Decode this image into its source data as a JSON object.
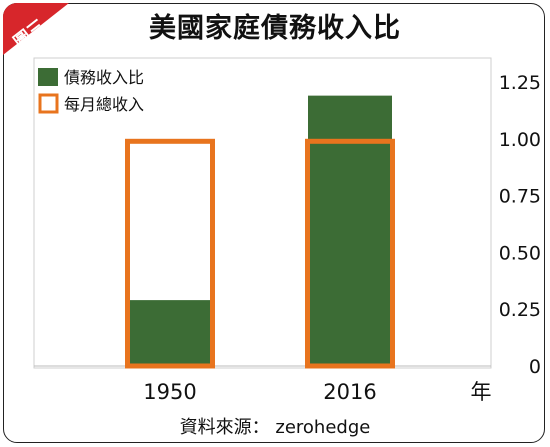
{
  "badge": "圖三",
  "source": "資料來源： zerohedge",
  "chart_data": {
    "type": "bar",
    "title": "美國家庭債務收入比",
    "categories": [
      "1950",
      "2016"
    ],
    "xunit": "年",
    "series": [
      {
        "name": "債務收入比",
        "values": [
          0.29,
          1.19
        ],
        "color": "#3c6c35",
        "style": "filled"
      },
      {
        "name": "每月總收入",
        "values": [
          1.0,
          1.0
        ],
        "color": "#e8741e",
        "style": "outline"
      }
    ],
    "ylim": [
      0,
      1.25
    ],
    "yticks": [
      "0",
      "0.25",
      "0.50",
      "0.75",
      "1.00",
      "1.25"
    ],
    "y_axis_side": "right",
    "grid": false,
    "legend": "top-left"
  }
}
